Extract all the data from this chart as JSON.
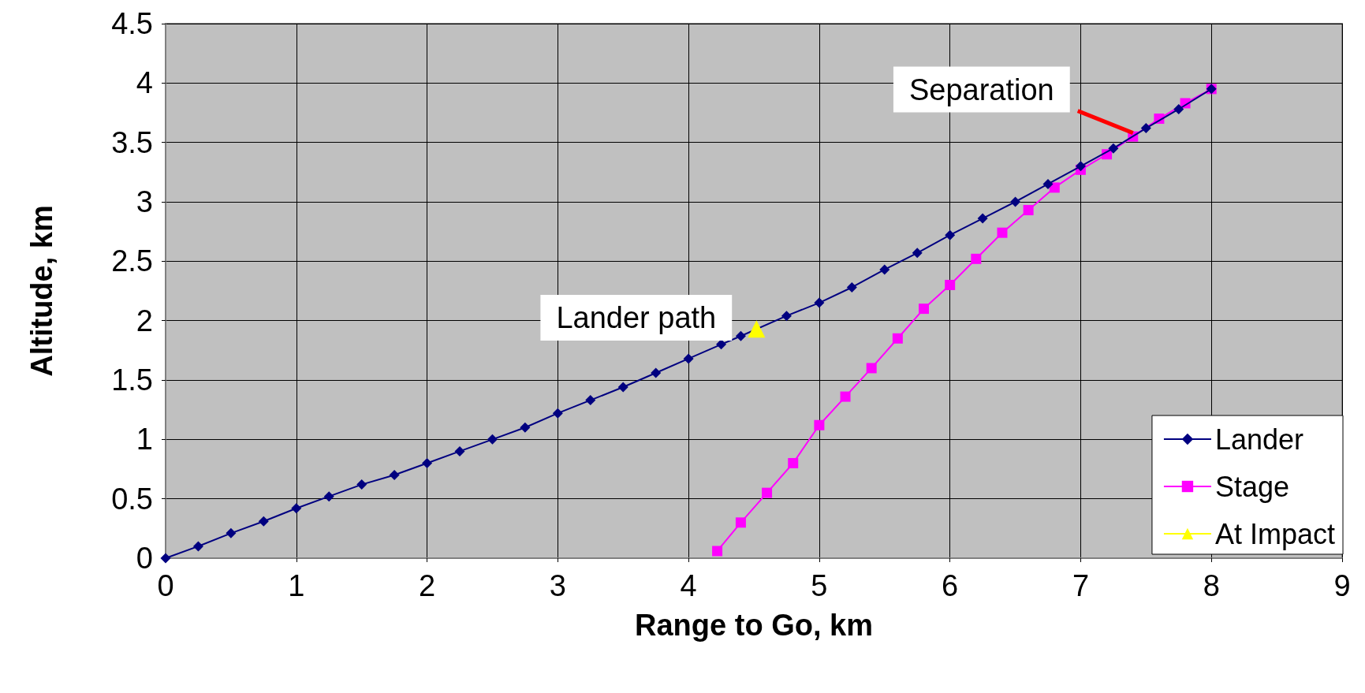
{
  "chart_data": {
    "type": "line",
    "xlabel": "Range to Go, km",
    "ylabel": "Altitude, km",
    "xlim": [
      0,
      9
    ],
    "xticks": [
      0,
      1,
      2,
      3,
      4,
      5,
      6,
      7,
      8,
      9
    ],
    "ylim": [
      0,
      4.5
    ],
    "yticks": [
      0,
      0.5,
      1,
      1.5,
      2,
      2.5,
      3,
      3.5,
      4,
      4.5
    ],
    "grid": true,
    "legend": "bottom right",
    "series": [
      {
        "name": "Lander",
        "color": "#000080",
        "marker": "diamond",
        "x": [
          0,
          0.25,
          0.5,
          0.75,
          1,
          1.25,
          1.5,
          1.75,
          2,
          2.25,
          2.5,
          2.75,
          3,
          3.25,
          3.5,
          3.75,
          4,
          4.25,
          4.4,
          4.75,
          5,
          5.25,
          5.5,
          5.75,
          6,
          6.25,
          6.5,
          6.75,
          7,
          7.25,
          7.5,
          7.75,
          8
        ],
        "values": [
          0,
          0.1,
          0.21,
          0.31,
          0.42,
          0.52,
          0.62,
          0.7,
          0.8,
          0.9,
          1.0,
          1.1,
          1.22,
          1.33,
          1.44,
          1.56,
          1.68,
          1.8,
          1.87,
          2.04,
          2.15,
          2.28,
          2.43,
          2.57,
          2.72,
          2.86,
          3.0,
          3.15,
          3.3,
          3.45,
          3.62,
          3.78,
          3.95
        ]
      },
      {
        "name": "Stage",
        "color": "#ff00ff",
        "marker": "square",
        "x": [
          4.22,
          4.4,
          4.6,
          4.8,
          5,
          5.2,
          5.4,
          5.6,
          5.8,
          6,
          6.2,
          6.4,
          6.6,
          6.8,
          7,
          7.2,
          7.4,
          7.6,
          7.8,
          8
        ],
        "values": [
          0.06,
          0.3,
          0.55,
          0.8,
          1.12,
          1.36,
          1.6,
          1.85,
          2.1,
          2.3,
          2.52,
          2.74,
          2.93,
          3.12,
          3.27,
          3.4,
          3.55,
          3.7,
          3.83,
          3.95
        ]
      },
      {
        "name": "At Impact",
        "color": "#ffff00",
        "marker": "triangle",
        "x": [
          4.52
        ],
        "values": [
          1.93
        ]
      }
    ],
    "annotations": [
      {
        "text": "Separation",
        "x": 7.4,
        "y": 3.58
      },
      "Lander path"
    ]
  }
}
